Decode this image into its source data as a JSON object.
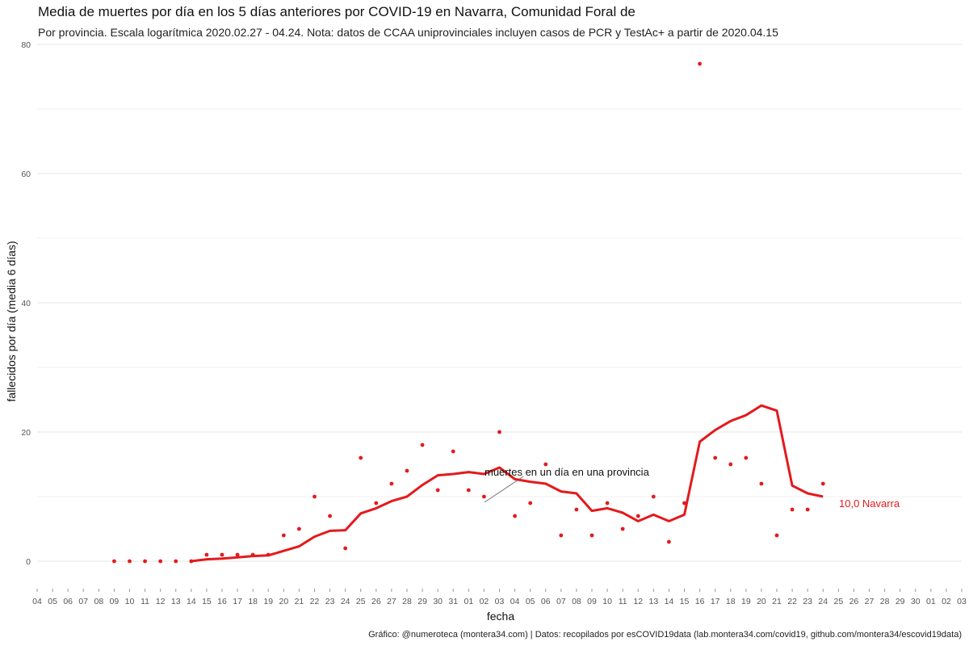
{
  "chart_data": {
    "type": "line",
    "title": "Media de muertes por día en los 5 días anteriores por COVID-19 en Navarra, Comunidad Foral de",
    "subtitle": "Por provincia. Escala logarítmica  2020.02.27 - 04.24. Nota: datos de CCAA uniprovinciales incluyen casos de PCR y TestAc+ a partir de 2020.04.15",
    "xlabel": "fecha",
    "ylabel": "fallecidos por día (media 6 días)",
    "caption": "Gráfico: @numeroteca (montera34.com) | Datos: recopilados por esCOVID19data (lab.montera34.com/covid19, github.com/montera34/escovid19data)",
    "x_tick_labels": [
      "04",
      "05",
      "06",
      "07",
      "08",
      "09",
      "10",
      "11",
      "12",
      "13",
      "14",
      "15",
      "16",
      "17",
      "18",
      "19",
      "20",
      "21",
      "22",
      "23",
      "24",
      "25",
      "26",
      "27",
      "28",
      "29",
      "30",
      "31",
      "01",
      "02",
      "03",
      "04",
      "05",
      "06",
      "07",
      "08",
      "09",
      "10",
      "11",
      "12",
      "13",
      "14",
      "15",
      "16",
      "17",
      "18",
      "19",
      "20",
      "21",
      "22",
      "23",
      "24",
      "25",
      "26",
      "27",
      "28",
      "29",
      "30",
      "01",
      "02",
      "03"
    ],
    "ylim": [
      -4,
      80
    ],
    "y_ticks": [
      0,
      20,
      40,
      60,
      80
    ],
    "y_tick_labels": [
      "0",
      "20",
      "40",
      "60",
      "80"
    ],
    "grid": true,
    "series": [
      {
        "name": "Navarra",
        "color": "#e41a1c",
        "points_x": [
          5,
          6,
          7,
          8,
          9,
          10,
          11,
          12,
          13,
          14,
          15,
          16,
          17,
          18,
          19,
          20,
          21,
          22,
          23,
          24,
          25,
          26,
          27,
          28,
          29,
          30,
          31,
          32,
          33,
          34,
          35,
          36,
          37,
          38,
          39,
          40,
          41,
          42,
          43,
          44,
          45,
          46,
          47,
          48,
          49,
          50,
          51
        ],
        "daily_deaths": [
          0,
          0,
          0,
          0,
          0,
          0,
          1,
          1,
          1,
          1,
          1,
          4,
          5,
          10,
          7,
          2,
          16,
          9,
          12,
          14,
          18,
          11,
          17,
          11,
          10,
          20,
          7,
          9,
          15,
          4,
          8,
          4,
          9,
          5,
          7,
          10,
          3,
          9,
          77,
          16,
          15,
          16,
          12,
          4,
          8,
          8,
          12
        ],
        "line_x": [
          10,
          11,
          12,
          13,
          14,
          15,
          16,
          17,
          18,
          19,
          20,
          21,
          22,
          23,
          24,
          25,
          26,
          27,
          28,
          29,
          30,
          31,
          32,
          33,
          34,
          35,
          36,
          37,
          38,
          39,
          40,
          41,
          42,
          43,
          44,
          45,
          46,
          47,
          48,
          49,
          50,
          51
        ],
        "moving_avg": [
          0,
          0.3,
          0.4,
          0.6,
          0.8,
          0.9,
          1.6,
          2.3,
          3.8,
          4.7,
          4.8,
          7.4,
          8.2,
          9.3,
          10,
          11.8,
          13.3,
          13.5,
          13.8,
          13.5,
          14.5,
          12.7,
          12.3,
          12,
          10.8,
          10.5,
          7.8,
          8.2,
          7.5,
          6.2,
          7.2,
          6.2,
          7.2,
          18.5,
          20.3,
          21.7,
          22.6,
          24.1,
          23.3,
          11.7,
          10.5,
          10
        ]
      }
    ],
    "annotations": {
      "points_label": "muertes en un día en una provincia",
      "end_label": "10,0 Navarra"
    }
  }
}
